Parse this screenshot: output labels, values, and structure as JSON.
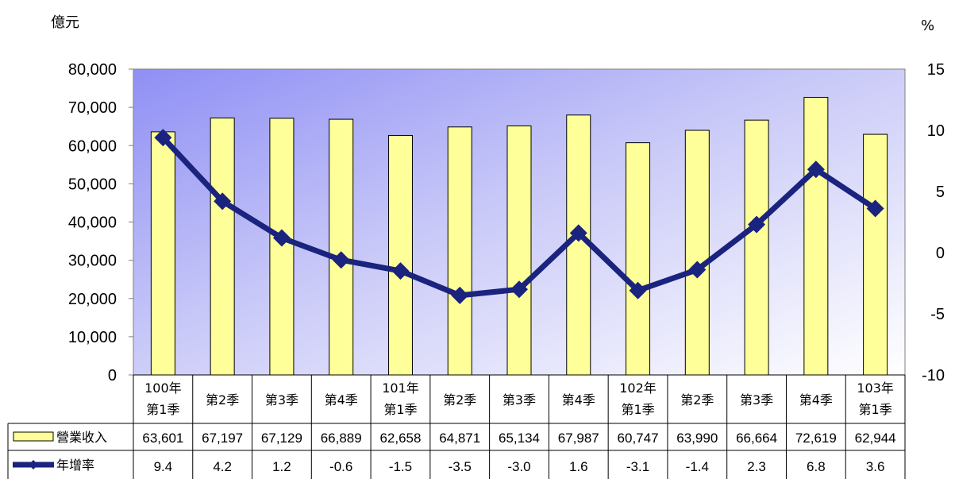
{
  "chart_data": {
    "type": "bar",
    "left_axis_unit": "億元",
    "right_axis_unit": "%",
    "left_ticks": [
      "0",
      "10,000",
      "20,000",
      "30,000",
      "40,000",
      "50,000",
      "60,000",
      "70,000",
      "80,000"
    ],
    "right_ticks": [
      "-10",
      "-5",
      "0",
      "5",
      "10",
      "15"
    ],
    "ylim_left": [
      0,
      80000
    ],
    "ylim_right": [
      -10,
      15
    ],
    "categories": [
      [
        "100年",
        "第1季"
      ],
      [
        "第2季"
      ],
      [
        "第3季"
      ],
      [
        "第4季"
      ],
      [
        "101年",
        "第1季"
      ],
      [
        "第2季"
      ],
      [
        "第3季"
      ],
      [
        "第4季"
      ],
      [
        "102年",
        "第1季"
      ],
      [
        "第2季"
      ],
      [
        "第3季"
      ],
      [
        "第4季"
      ],
      [
        "103年",
        "第1季"
      ]
    ],
    "series": [
      {
        "name": "營業收入",
        "type": "bar",
        "axis": "left",
        "color": "#ffff99",
        "values": [
          63601,
          67197,
          67129,
          66889,
          62658,
          64871,
          65134,
          67987,
          60747,
          63990,
          66664,
          72619,
          62944
        ],
        "labels": [
          "63,601",
          "67,197",
          "67,129",
          "66,889",
          "62,658",
          "64,871",
          "65,134",
          "67,987",
          "60,747",
          "63,990",
          "66,664",
          "72,619",
          "62,944"
        ]
      },
      {
        "name": "年增率",
        "type": "line",
        "axis": "right",
        "color": "#1a237e",
        "values": [
          9.4,
          4.2,
          1.2,
          -0.6,
          -1.5,
          -3.5,
          -3.0,
          1.6,
          -3.1,
          -1.4,
          2.3,
          6.8,
          3.6
        ],
        "labels": [
          "9.4",
          "4.2",
          "1.2",
          "-0.6",
          "-1.5",
          "-3.5",
          "-3.0",
          "1.6",
          "-3.1",
          "-1.4",
          "2.3",
          "6.8",
          "3.6"
        ]
      }
    ]
  }
}
